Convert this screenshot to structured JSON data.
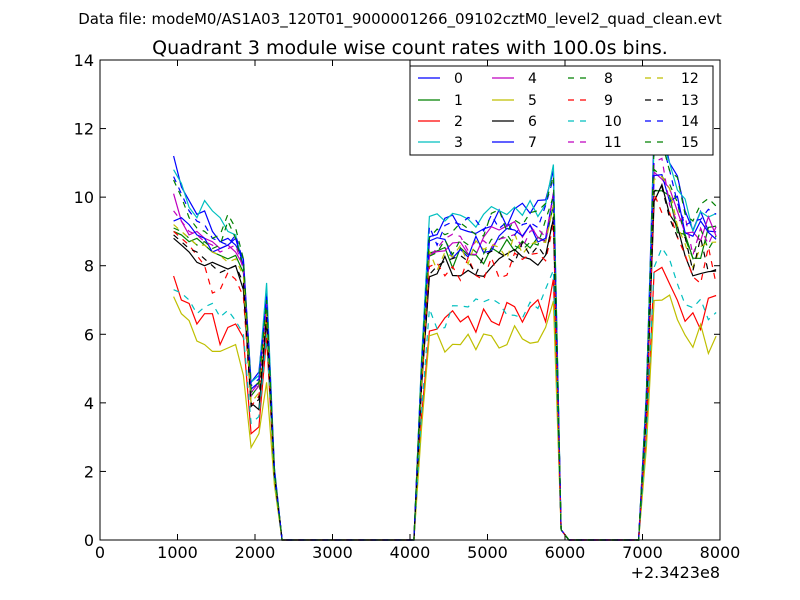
{
  "chart_data": {
    "type": "line",
    "suptitle": "Data file: modeM0/AS1A03_120T01_9000001266_09102cztM0_level2_quad_clean.evt",
    "title": "Quadrant 3 module wise count rates with 100.0s bins.",
    "xlabel": "",
    "ylabel": "",
    "xlim": [
      0,
      8000
    ],
    "ylim": [
      0,
      14
    ],
    "x_ticks": [
      0,
      1000,
      2000,
      3000,
      4000,
      5000,
      6000,
      7000,
      8000
    ],
    "y_ticks": [
      0,
      2,
      4,
      6,
      8,
      10,
      12,
      14
    ],
    "x_offset_label": "+2.3423e8",
    "grid": false,
    "legend": {
      "placement": "top-right",
      "columns": 4
    },
    "series": [
      {
        "name": "0",
        "color": "#0000ff",
        "dash": "solid",
        "y": [
          11.2,
          10.3,
          9.9,
          9.5,
          9.6,
          9.0,
          8.7,
          8.8,
          8.6,
          8.2,
          4.6,
          4.9,
          7.2,
          2.1,
          0
        ]
      },
      {
        "name": "1",
        "color": "#008000",
        "dash": "solid",
        "y": [
          9.0,
          8.9,
          8.7,
          8.8,
          8.6,
          8.4,
          8.3,
          8.2,
          8.3,
          7.8,
          4.2,
          4.5,
          6.8,
          2.0,
          0
        ]
      },
      {
        "name": "2",
        "color": "#ff0000",
        "dash": "solid",
        "y": [
          7.7,
          7.0,
          6.9,
          6.3,
          6.6,
          6.6,
          5.7,
          6.2,
          6.3,
          5.9,
          3.1,
          3.3,
          5.9,
          1.8,
          0
        ]
      },
      {
        "name": "3",
        "color": "#00bfbf",
        "dash": "solid",
        "y": [
          10.8,
          10.4,
          9.7,
          9.4,
          9.9,
          9.6,
          9.4,
          9.0,
          8.9,
          8.0,
          4.6,
          4.8,
          7.5,
          2.1,
          0
        ]
      },
      {
        "name": "4",
        "color": "#bf00bf",
        "dash": "solid",
        "y": [
          10.1,
          9.3,
          8.9,
          9.0,
          8.8,
          8.7,
          8.5,
          8.6,
          8.4,
          8.0,
          4.3,
          4.6,
          6.9,
          2.0,
          0
        ]
      },
      {
        "name": "5",
        "color": "#bfbf00",
        "dash": "solid",
        "y": [
          7.1,
          6.6,
          6.4,
          5.8,
          5.7,
          5.5,
          5.5,
          5.6,
          5.7,
          4.8,
          2.7,
          3.1,
          4.6,
          1.6,
          0
        ]
      },
      {
        "name": "6",
        "color": "#000000",
        "dash": "solid",
        "y": [
          8.8,
          8.6,
          8.4,
          8.1,
          8.0,
          8.1,
          8.0,
          7.9,
          8.0,
          7.3,
          4.0,
          3.8,
          6.4,
          1.9,
          0
        ]
      },
      {
        "name": "7",
        "color": "#0000ff",
        "dash": "solid",
        "y": [
          9.3,
          9.4,
          9.2,
          8.9,
          8.8,
          8.4,
          8.5,
          8.6,
          8.8,
          8.0,
          4.4,
          4.6,
          7.0,
          2.0,
          0
        ]
      },
      {
        "name": "8",
        "color": "#008000",
        "dash": "dashed",
        "y": [
          9.1,
          9.0,
          8.8,
          8.6,
          8.7,
          8.5,
          8.6,
          9.3,
          8.8,
          7.9,
          4.3,
          4.5,
          6.8,
          2.0,
          0
        ]
      },
      {
        "name": "9",
        "color": "#ff0000",
        "dash": "dashed",
        "y": [
          9.0,
          8.8,
          8.6,
          8.3,
          8.0,
          7.2,
          7.3,
          7.8,
          7.6,
          7.1,
          3.9,
          4.2,
          6.5,
          1.9,
          0
        ]
      },
      {
        "name": "10",
        "color": "#00bfbf",
        "dash": "dashed",
        "y": [
          7.3,
          7.2,
          7.0,
          6.6,
          6.8,
          6.9,
          6.5,
          6.7,
          6.4,
          6.0,
          3.4,
          3.6,
          6.0,
          1.8,
          0
        ]
      },
      {
        "name": "11",
        "color": "#bf00bf",
        "dash": "dashed",
        "y": [
          9.6,
          9.3,
          9.0,
          8.9,
          8.7,
          8.6,
          8.4,
          8.5,
          8.6,
          7.9,
          4.2,
          4.5,
          6.9,
          2.0,
          0
        ]
      },
      {
        "name": "12",
        "color": "#bfbf00",
        "dash": "dashed",
        "y": [
          9.2,
          9.0,
          8.8,
          8.6,
          8.6,
          8.4,
          8.3,
          8.1,
          8.2,
          7.7,
          4.0,
          4.3,
          6.6,
          1.9,
          0
        ]
      },
      {
        "name": "13",
        "color": "#000000",
        "dash": "dashed",
        "y": [
          8.9,
          8.7,
          8.5,
          8.4,
          8.2,
          8.0,
          7.8,
          7.9,
          8.0,
          7.5,
          3.9,
          4.1,
          6.5,
          1.9,
          0
        ]
      },
      {
        "name": "14",
        "color": "#0000ff",
        "dash": "dashed",
        "y": [
          10.6,
          10.1,
          9.6,
          9.3,
          9.2,
          8.8,
          8.7,
          8.6,
          8.9,
          8.1,
          4.5,
          4.7,
          7.1,
          2.0,
          0
        ]
      },
      {
        "name": "15",
        "color": "#008000",
        "dash": "dashed",
        "y": [
          10.5,
          10.0,
          9.4,
          9.1,
          9.0,
          8.8,
          8.9,
          9.5,
          9.1,
          8.2,
          4.4,
          4.6,
          7.0,
          2.0,
          0
        ]
      }
    ]
  }
}
